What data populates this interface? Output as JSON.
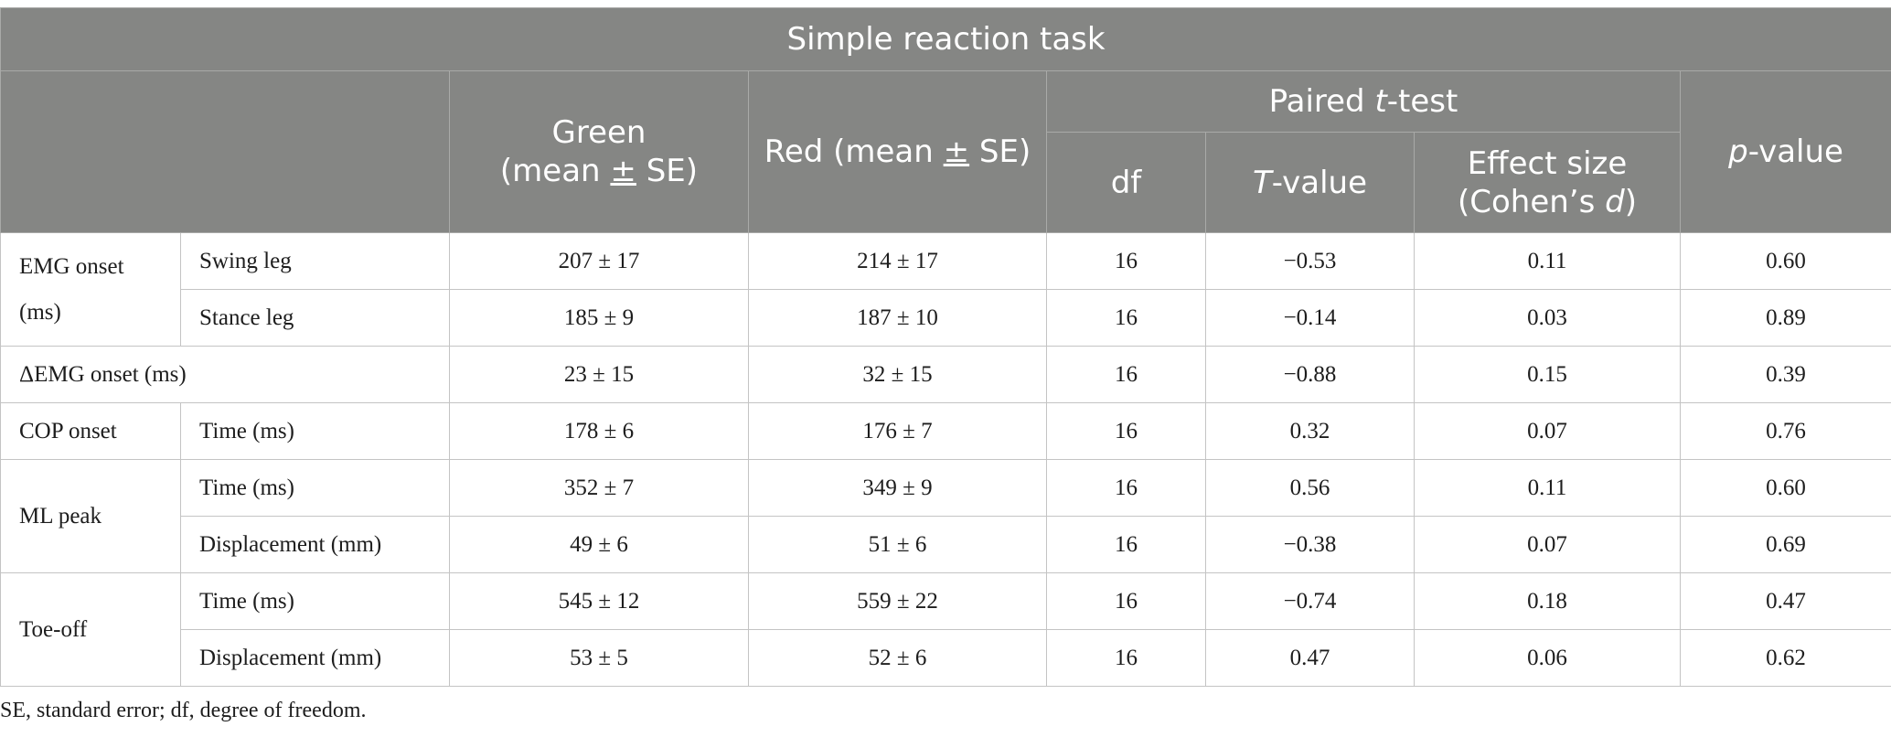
{
  "table": {
    "title": "Simple reaction task",
    "headers": {
      "green_line1": "Green",
      "green_line2_a": "(mean ",
      "green_line2_pm": "±",
      "green_line2_b": " SE)",
      "red_a": "Red (mean ",
      "red_pm": "±",
      "red_b": " SE)",
      "paired_a": "Paired ",
      "paired_t": "t",
      "paired_b": "-test",
      "df": "df",
      "tvalue_T": "T",
      "tvalue_rest": "-value",
      "effect_line1": "Effect size",
      "effect_line2_a": "(Cohen’s ",
      "effect_line2_d": "d",
      "effect_line2_b": ")",
      "pvalue_p": "p",
      "pvalue_rest": "-value"
    },
    "groups": {
      "emg_onset_line1": "EMG onset",
      "emg_onset_line2": "(ms)",
      "delta_emg": "ΔEMG onset (ms)",
      "cop_onset": "COP onset",
      "ml_peak": "ML peak",
      "toe_off": "Toe-off"
    },
    "rows": [
      {
        "sub": "Swing leg",
        "green": "207 ± 17",
        "red": "214 ± 17",
        "df": "16",
        "t": "−0.53",
        "d": "0.11",
        "p": "0.60"
      },
      {
        "sub": "Stance leg",
        "green": "185 ± 9",
        "red": "187 ± 10",
        "df": "16",
        "t": "−0.14",
        "d": "0.03",
        "p": "0.89"
      },
      {
        "sub": "",
        "green": "23 ± 15",
        "red": "32 ± 15",
        "df": "16",
        "t": "−0.88",
        "d": "0.15",
        "p": "0.39"
      },
      {
        "sub": "Time (ms)",
        "green": "178 ± 6",
        "red": "176 ± 7",
        "df": "16",
        "t": "0.32",
        "d": "0.07",
        "p": "0.76"
      },
      {
        "sub": "Time (ms)",
        "green": "352 ± 7",
        "red": "349 ± 9",
        "df": "16",
        "t": "0.56",
        "d": "0.11",
        "p": "0.60"
      },
      {
        "sub": "Displacement (mm)",
        "green": "49 ± 6",
        "red": "51 ± 6",
        "df": "16",
        "t": "−0.38",
        "d": "0.07",
        "p": "0.69"
      },
      {
        "sub": "Time (ms)",
        "green": "545 ± 12",
        "red": "559 ± 22",
        "df": "16",
        "t": "−0.74",
        "d": "0.18",
        "p": "0.47"
      },
      {
        "sub": "Displacement (mm)",
        "green": "53 ± 5",
        "red": "52 ± 6",
        "df": "16",
        "t": "0.47",
        "d": "0.06",
        "p": "0.62"
      }
    ],
    "footnote": "SE, standard error; df, degree of freedom."
  }
}
